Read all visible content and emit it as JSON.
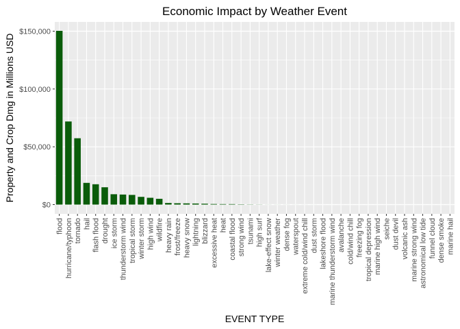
{
  "chart_data": {
    "type": "bar",
    "title": "Economic Impact by Weather Event",
    "xlabel": "EVENT TYPE",
    "ylabel": "Property and Crop Dmg in Millions USD",
    "ylim": [
      -8000,
      158000
    ],
    "yticks": [
      0,
      50000,
      100000,
      150000
    ],
    "ytick_labels": [
      "$0",
      "$50,000",
      "$100,000",
      "$150,000"
    ],
    "grid": true,
    "legend": "none",
    "bar_color": "#0a5c0a",
    "panel_color": "#ebebeb",
    "categories": [
      "flood",
      "hurricane/typhoon",
      "tornado",
      "hail",
      "flash flood",
      "drought",
      "ice storm",
      "thunderstorm wind",
      "tropical storm",
      "winter storm",
      "high wind",
      "wildfire",
      "heavy rain",
      "frost/freeze",
      "heavy snow",
      "lightning",
      "blizzard",
      "excessive heat",
      "heat",
      "coastal flood",
      "strong wind",
      "tsunami",
      "high surf",
      "lake-effect snow",
      "winter weather",
      "dense fog",
      "waterspout",
      "extreme cold/wind chill",
      "dust storm",
      "lakeshore flood",
      "marine thunderstorm wind",
      "avalanche",
      "cold/wind chill",
      "freezing fog",
      "tropical depression",
      "marine high wind",
      "seiche",
      "dust devil",
      "volcanic ash",
      "marine strong wind",
      "astronomical low tide",
      "funnel cloud",
      "dense smoke",
      "marine hail"
    ],
    "values": [
      150300,
      71900,
      57400,
      18800,
      17600,
      15000,
      8970,
      8700,
      8380,
      6700,
      5900,
      5000,
      1400,
      1170,
      1060,
      940,
      770,
      500,
      420,
      410,
      240,
      145,
      95,
      40,
      35,
      28,
      20,
      15,
      10,
      8,
      6,
      5,
      4,
      3,
      2,
      1.5,
      1,
      0.8,
      0.6,
      0.4,
      0.3,
      0.2,
      0.1,
      0.05
    ]
  }
}
